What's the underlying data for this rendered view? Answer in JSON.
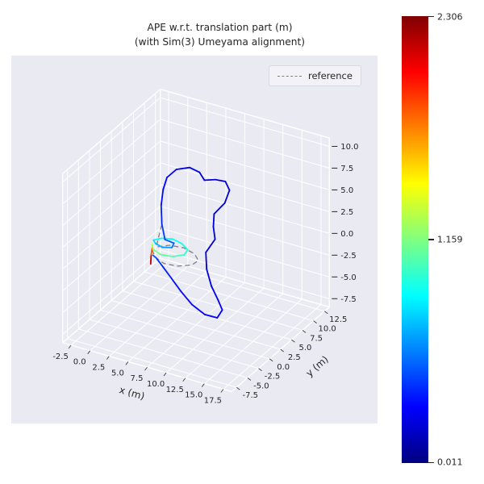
{
  "figure": {
    "title_line1": "APE w.r.t. translation part (m)",
    "title_line2": "(with Sim(3) Umeyama alignment)",
    "background_color": "#ffffff",
    "axes_background_color": "#eaeaf2",
    "grid_color": "#ffffff",
    "text_color": "#262626"
  },
  "legend": {
    "label": "reference",
    "line_color": "#7f7f7f",
    "line_style": "dashed"
  },
  "colorbar": {
    "min": 0.011,
    "max": 2.306,
    "max_label": "2.306",
    "mid_label": "1.159",
    "min_label": "0.011",
    "colormap": "jet"
  },
  "chart_data": {
    "type": "line",
    "projection": "3d",
    "title": "APE w.r.t. translation part (m) (with Sim(3) Umeyama alignment)",
    "xlabel": "x (m)",
    "ylabel": "y (m)",
    "xlim": [
      -2.5,
      17.5
    ],
    "ylim": [
      -7.5,
      12.5
    ],
    "zlim": [
      -7.5,
      10.0
    ],
    "xticks": [
      -2.5,
      0.0,
      2.5,
      5.0,
      7.5,
      10.0,
      12.5,
      15.0,
      17.5
    ],
    "yticks": [
      -7.5,
      -5.0,
      -2.5,
      0.0,
      2.5,
      5.0,
      7.5,
      10.0,
      12.5
    ],
    "zticks": [
      -7.5,
      -5.0,
      -2.5,
      0.0,
      2.5,
      5.0,
      7.5,
      10.0
    ],
    "view": {
      "elev_deg": 30,
      "azim_deg": -60
    },
    "error_range": [
      0.011,
      2.306
    ],
    "grid": true,
    "legend_position": "upper right",
    "series": [
      {
        "name": "estimate_colored_by_ape",
        "colormap": "jet",
        "points": [
          [
            2.3,
            1.2,
            -2.2
          ],
          [
            2.3,
            1.3,
            -1.2
          ],
          [
            2.4,
            1.4,
            -0.3
          ],
          [
            2.6,
            1.0,
            0.2
          ],
          [
            3.3,
            0.0,
            0.25
          ],
          [
            4.6,
            -0.5,
            0.2
          ],
          [
            6.0,
            -0.2,
            0.2
          ],
          [
            7.0,
            0.7,
            0.25
          ],
          [
            6.8,
            1.8,
            0.3
          ],
          [
            5.6,
            2.6,
            0.35
          ],
          [
            4.2,
            2.9,
            0.4
          ],
          [
            3.0,
            2.4,
            0.4
          ],
          [
            2.5,
            1.5,
            0.45
          ],
          [
            3.1,
            0.9,
            0.5
          ],
          [
            4.2,
            0.5,
            0.5
          ],
          [
            5.2,
            1.0,
            0.5
          ],
          [
            4.9,
            2.0,
            0.5
          ],
          [
            3.6,
            2.2,
            0.5
          ],
          [
            2.6,
            3.2,
            1.6
          ],
          [
            1.6,
            4.8,
            2.8
          ],
          [
            1.0,
            6.3,
            3.8
          ],
          [
            0.8,
            7.5,
            4.6
          ],
          [
            1.4,
            8.6,
            5.2
          ],
          [
            2.8,
            9.2,
            5.5
          ],
          [
            4.2,
            9.0,
            5.4
          ],
          [
            5.2,
            8.4,
            5.0
          ],
          [
            6.4,
            8.8,
            5.2
          ],
          [
            7.6,
            9.0,
            5.2
          ],
          [
            8.6,
            8.2,
            4.8
          ],
          [
            8.8,
            6.8,
            4.0
          ],
          [
            8.2,
            5.4,
            3.2
          ],
          [
            8.8,
            4.2,
            2.4
          ],
          [
            9.6,
            3.2,
            1.6
          ],
          [
            9.2,
            1.8,
            0.6
          ],
          [
            10.0,
            0.6,
            -0.6
          ],
          [
            11.2,
            -0.4,
            -1.8
          ],
          [
            12.4,
            -1.0,
            -2.8
          ],
          [
            13.2,
            -1.4,
            -3.6
          ],
          [
            13.0,
            -2.2,
            -4.2
          ],
          [
            11.6,
            -2.6,
            -4.0
          ],
          [
            9.8,
            -2.4,
            -3.4
          ],
          [
            8.0,
            -1.8,
            -2.6
          ],
          [
            6.2,
            -1.0,
            -1.8
          ],
          [
            4.6,
            -0.2,
            -1.2
          ],
          [
            3.4,
            0.5,
            -0.9
          ],
          [
            2.7,
            1.0,
            -1.0
          ]
        ],
        "errors": [
          2.3,
          2.05,
          1.6,
          1.3,
          1.18,
          1.1,
          1.05,
          1.0,
          0.96,
          0.92,
          0.9,
          0.88,
          0.85,
          0.75,
          0.68,
          0.6,
          0.52,
          0.46,
          0.4,
          0.34,
          0.3,
          0.28,
          0.26,
          0.24,
          0.22,
          0.22,
          0.2,
          0.2,
          0.2,
          0.2,
          0.22,
          0.22,
          0.2,
          0.2,
          0.22,
          0.24,
          0.26,
          0.28,
          0.3,
          0.3,
          0.3,
          0.32,
          0.34,
          0.38,
          0.44,
          0.55
        ]
      },
      {
        "name": "reference",
        "color": "#7f7f7f",
        "linestyle": "dashed",
        "points": [
          [
            2.6,
            1.0,
            -0.4
          ],
          [
            3.6,
            -0.1,
            -0.5
          ],
          [
            5.2,
            -0.8,
            -0.55
          ],
          [
            6.9,
            -0.6,
            -0.5
          ],
          [
            8.2,
            0.3,
            -0.45
          ],
          [
            8.4,
            1.5,
            -0.4
          ],
          [
            7.3,
            2.5,
            -0.35
          ],
          [
            5.6,
            3.0,
            -0.3
          ],
          [
            3.9,
            2.7,
            -0.3
          ],
          [
            2.8,
            1.6,
            -0.3
          ],
          [
            2.6,
            3.2,
            1.6
          ],
          [
            1.6,
            4.8,
            2.8
          ],
          [
            1.0,
            6.3,
            3.8
          ],
          [
            0.8,
            7.5,
            4.6
          ],
          [
            1.4,
            8.6,
            5.2
          ],
          [
            2.8,
            9.2,
            5.5
          ],
          [
            4.2,
            9.0,
            5.4
          ],
          [
            5.2,
            8.4,
            5.0
          ],
          [
            6.4,
            8.8,
            5.2
          ],
          [
            7.6,
            9.0,
            5.2
          ],
          [
            8.6,
            8.2,
            4.8
          ],
          [
            8.8,
            6.8,
            4.0
          ],
          [
            8.2,
            5.4,
            3.2
          ],
          [
            8.8,
            4.2,
            2.4
          ],
          [
            9.6,
            3.2,
            1.6
          ],
          [
            9.2,
            1.8,
            0.6
          ],
          [
            10.0,
            0.6,
            -0.6
          ],
          [
            11.2,
            -0.4,
            -1.8
          ],
          [
            12.4,
            -1.0,
            -2.8
          ],
          [
            13.2,
            -1.4,
            -3.6
          ],
          [
            13.0,
            -2.2,
            -4.2
          ],
          [
            11.6,
            -2.6,
            -4.0
          ],
          [
            9.8,
            -2.4,
            -3.4
          ],
          [
            8.0,
            -1.8,
            -2.6
          ],
          [
            6.2,
            -1.0,
            -1.8
          ],
          [
            4.6,
            -0.2,
            -1.2
          ],
          [
            3.4,
            0.5,
            -0.9
          ],
          [
            2.7,
            1.0,
            -1.0
          ]
        ]
      }
    ]
  }
}
